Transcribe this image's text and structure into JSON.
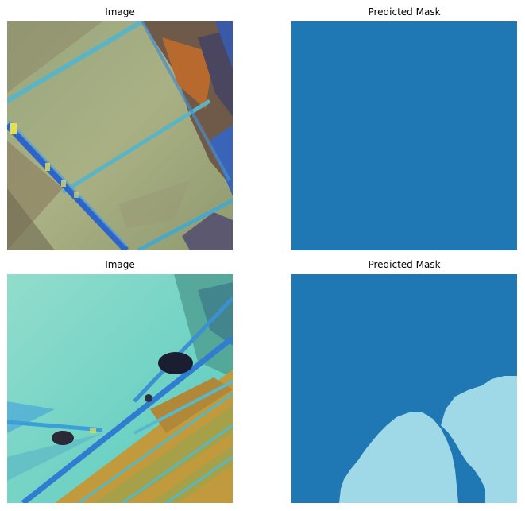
{
  "panels": [
    {
      "title": "Image"
    },
    {
      "title": "Predicted Mask"
    },
    {
      "title": "Image"
    },
    {
      "title": "Predicted Mask"
    }
  ],
  "colors": {
    "mask_background": "#1f77b4",
    "mask_foreground": "#9fd8e6"
  }
}
